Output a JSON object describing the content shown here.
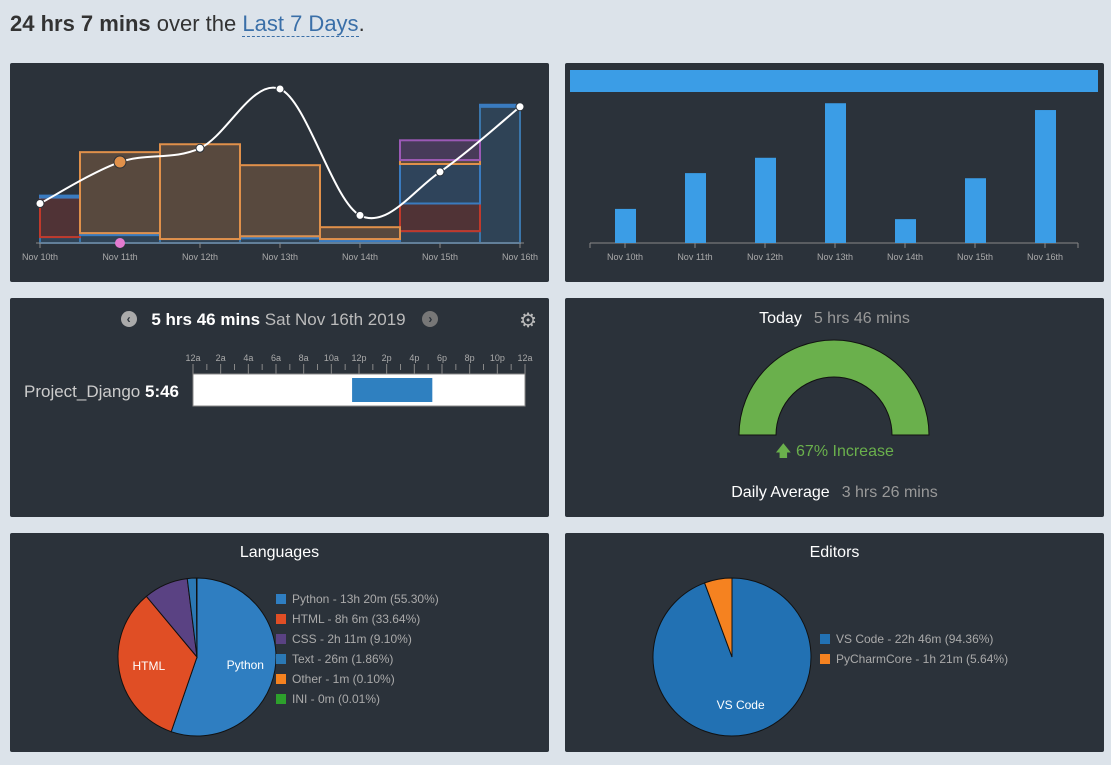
{
  "header": {
    "total": "24 hrs 7 mins",
    "over_text": "over the",
    "range_label": "Last 7 Days",
    "period": "."
  },
  "days": [
    "Nov 10th",
    "Nov 11th",
    "Nov 12th",
    "Nov 13th",
    "Nov 14th",
    "Nov 15th",
    "Nov 16th"
  ],
  "activity_chart": {
    "type": "area",
    "unit": "hours",
    "series": [
      {
        "name": "Python",
        "values": [
          0.15,
          0.2,
          0.1,
          0.12,
          0.05,
          0.3,
          3.45
        ],
        "color": "#3b76aa"
      },
      {
        "name": "HTML",
        "values": [
          1.0,
          0.0,
          0.0,
          0.0,
          0.0,
          0.7,
          0.0
        ],
        "color": "#c0392b"
      },
      {
        "name": "Text",
        "values": [
          0.05,
          0.05,
          0.0,
          0.05,
          0.05,
          1.0,
          0.05
        ],
        "color": "#3a7bbf"
      },
      {
        "name": "Other",
        "values": [
          0.0,
          2.05,
          2.4,
          1.8,
          0.3,
          0.1,
          0.0
        ],
        "color": "#e0904a"
      },
      {
        "name": "CSS",
        "values": [
          0.0,
          0.0,
          0.0,
          0.0,
          0.0,
          0.5,
          0.0
        ],
        "color": "#9b59b6"
      }
    ],
    "total_line": [
      1.0,
      2.05,
      2.4,
      3.9,
      0.7,
      1.8,
      3.45
    ]
  },
  "weekly_bars": {
    "type": "bar",
    "categories": [
      "Nov 10th",
      "Nov 11th",
      "Nov 12th",
      "Nov 13th",
      "Nov 14th",
      "Nov 15th",
      "Nov 16th"
    ],
    "values": [
      1.0,
      2.05,
      2.5,
      4.1,
      0.7,
      1.9,
      3.9
    ],
    "ylim": [
      0,
      4.4
    ],
    "color": "#3b9de6"
  },
  "day_view": {
    "duration": "5 hrs 46 mins",
    "date": "Sat Nov 16th 2019",
    "hour_labels": [
      "12a",
      "2a",
      "4a",
      "6a",
      "8a",
      "10a",
      "12p",
      "2p",
      "4p",
      "6p",
      "8p",
      "10p",
      "12a"
    ],
    "project_name": "Project_Django",
    "project_time": "5:46",
    "block_start_hour": 11.5,
    "block_end_hour": 17.3
  },
  "today": {
    "label": "Today",
    "value": "5 hrs 46 mins",
    "gauge_fraction": 1.0,
    "increase": "67% Increase",
    "avg_label": "Daily Average",
    "avg_value": "3 hrs 26 mins"
  },
  "languages": {
    "title": "Languages",
    "items": [
      {
        "label": "Python - 13h 20m (55.30%)",
        "name": "Python",
        "pct": 55.3,
        "color": "#2f7ec1"
      },
      {
        "label": "HTML - 8h 6m (33.64%)",
        "name": "HTML",
        "pct": 33.64,
        "color": "#e04e25"
      },
      {
        "label": "CSS - 2h 11m (9.10%)",
        "name": "CSS",
        "pct": 9.1,
        "color": "#5a4283"
      },
      {
        "label": "Text - 26m (1.86%)",
        "name": "Text",
        "pct": 1.86,
        "color": "#2b78b4"
      },
      {
        "label": "Other - 1m (0.10%)",
        "name": "Other",
        "pct": 0.1,
        "color": "#f58220"
      },
      {
        "label": "INI - 0m (0.01%)",
        "name": "INI",
        "pct": 0.01,
        "color": "#2da02c"
      }
    ],
    "slice_labels": [
      "Python",
      "HTML"
    ]
  },
  "editors": {
    "title": "Editors",
    "items": [
      {
        "label": "VS Code - 22h 46m (94.36%)",
        "name": "VS Code",
        "pct": 94.36,
        "color": "#2271b3"
      },
      {
        "label": "PyCharmCore - 1h 21m (5.64%)",
        "name": "PyCharmCore",
        "pct": 5.64,
        "color": "#f58220"
      }
    ],
    "slice_labels": [
      "VS Code"
    ]
  },
  "colors": {
    "panel_bg": "#2b323a",
    "page_bg": "#dce3ea",
    "gauge_green": "#6ab04c",
    "link_blue": "#3a6fa8"
  },
  "icons": {
    "prev": "chevron-left-icon",
    "next": "chevron-right-icon",
    "settings": "gear-icon",
    "increase": "arrow-up-icon"
  }
}
